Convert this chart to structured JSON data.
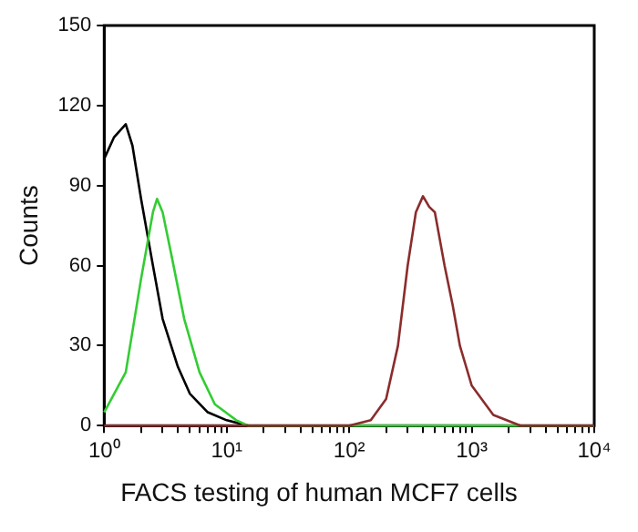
{
  "chart_data": {
    "type": "line",
    "ylabel": "Counts",
    "annotations": [
      "FACS testing of human MCF7 cells"
    ],
    "log": "x",
    "xlim": [
      1,
      10000
    ],
    "ylim": [
      0,
      150
    ],
    "xticks": [
      {
        "value": 1,
        "label": "10⁰"
      },
      {
        "value": 2,
        "label": null
      },
      {
        "value": 3,
        "label": null
      },
      {
        "value": 4,
        "label": null
      },
      {
        "value": 5,
        "label": null
      },
      {
        "value": 6,
        "label": null
      },
      {
        "value": 7,
        "label": null
      },
      {
        "value": 8,
        "label": null
      },
      {
        "value": 9,
        "label": null
      },
      {
        "value": 10,
        "label": "10¹"
      },
      {
        "value": 20,
        "label": null
      },
      {
        "value": 30,
        "label": null
      },
      {
        "value": 40,
        "label": null
      },
      {
        "value": 50,
        "label": null
      },
      {
        "value": 60,
        "label": null
      },
      {
        "value": 70,
        "label": null
      },
      {
        "value": 80,
        "label": null
      },
      {
        "value": 90,
        "label": null
      },
      {
        "value": 100,
        "label": "10²"
      },
      {
        "value": 200,
        "label": null
      },
      {
        "value": 300,
        "label": null
      },
      {
        "value": 400,
        "label": null
      },
      {
        "value": 500,
        "label": null
      },
      {
        "value": 600,
        "label": null
      },
      {
        "value": 700,
        "label": null
      },
      {
        "value": 800,
        "label": null
      },
      {
        "value": 900,
        "label": null
      },
      {
        "value": 1000,
        "label": "10³"
      },
      {
        "value": 2000,
        "label": null
      },
      {
        "value": 3000,
        "label": null
      },
      {
        "value": 4000,
        "label": null
      },
      {
        "value": 5000,
        "label": null
      },
      {
        "value": 6000,
        "label": null
      },
      {
        "value": 7000,
        "label": null
      },
      {
        "value": 8000,
        "label": null
      },
      {
        "value": 9000,
        "label": null
      },
      {
        "value": 10000,
        "label": "10⁴"
      }
    ],
    "yticks": [
      0,
      30,
      60,
      90,
      120,
      150
    ],
    "grid": false,
    "legend": false,
    "marker": "none",
    "line_style": "solid",
    "series": [
      {
        "color": "#8b2c2c",
        "x": [
          1,
          100,
          150,
          200,
          250,
          300,
          350,
          400,
          450,
          500,
          600,
          700,
          800,
          1000,
          1500,
          2500,
          10000
        ],
        "values": [
          0,
          0,
          2,
          10,
          30,
          60,
          80,
          86,
          82,
          80,
          60,
          45,
          30,
          15,
          4,
          0,
          0
        ]
      },
      {
        "color": "#33cc33",
        "x": [
          1,
          1.5,
          2,
          2.5,
          2.7,
          3,
          3.5,
          4.5,
          6,
          8,
          12,
          15,
          10000
        ],
        "values": [
          5,
          20,
          55,
          80,
          85,
          80,
          65,
          40,
          20,
          8,
          2,
          0,
          0
        ]
      },
      {
        "color": "#000000",
        "x": [
          1,
          1.2,
          1.5,
          1.7,
          2,
          2.5,
          3,
          4,
          5,
          7,
          10,
          15,
          10000
        ],
        "values": [
          100,
          108,
          113,
          105,
          85,
          60,
          40,
          22,
          12,
          5,
          2,
          0,
          0
        ]
      }
    ]
  }
}
